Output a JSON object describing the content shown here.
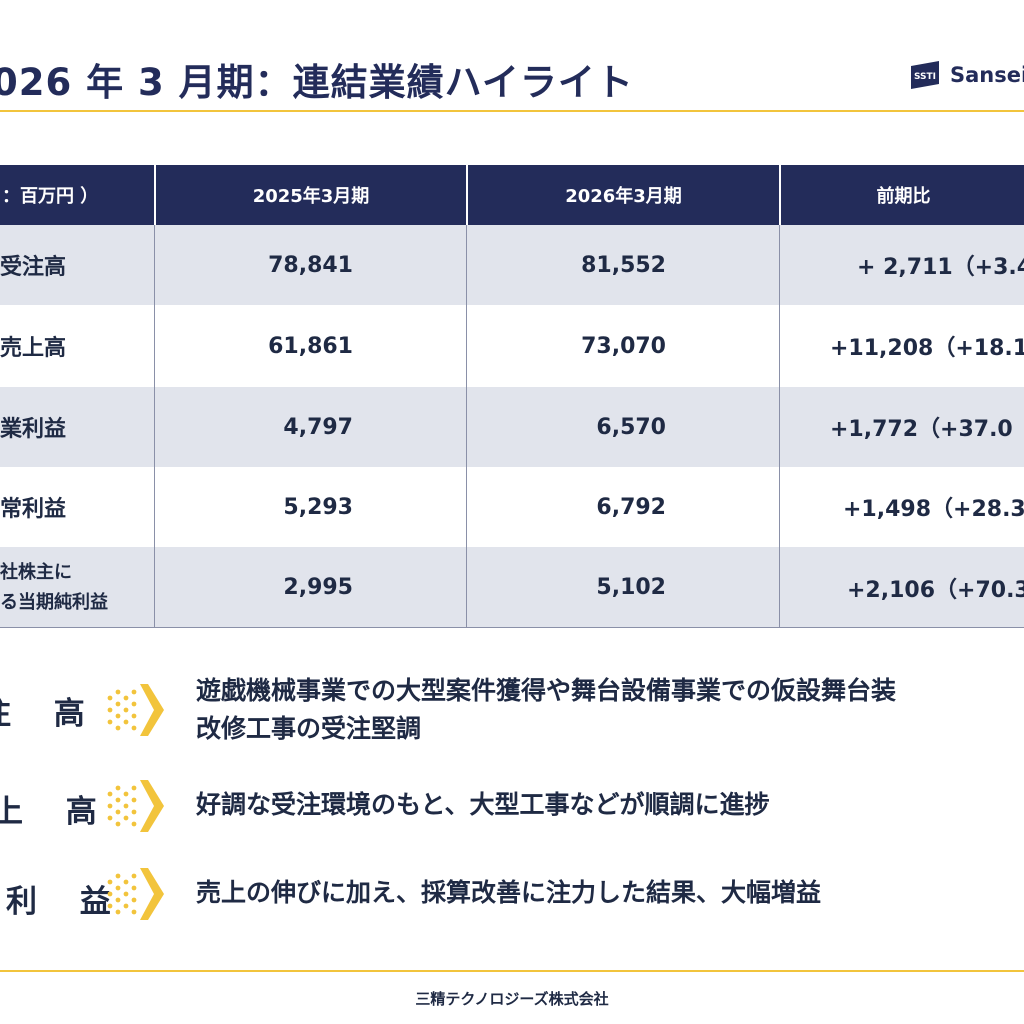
{
  "header": {
    "title": "026 年 3 月期：連結業績ハイライト",
    "logo_mark": "SSTI",
    "logo_text": "Sansei T"
  },
  "table": {
    "columns": [
      "：百万円 ）",
      "2025年3月期",
      "2026年3月期",
      "前期比"
    ],
    "rows": [
      {
        "label": "受注高",
        "label2": "",
        "fy2025": "78,841",
        "fy2026": "81,552",
        "change": "+ 2,711（+3.4"
      },
      {
        "label": "売上高",
        "label2": "",
        "fy2025": "61,861",
        "fy2026": "73,070",
        "change": "+11,208（+18.1"
      },
      {
        "label": "業利益",
        "label2": "",
        "fy2025": "4,797",
        "fy2026": "6,570",
        "change": "+1,772（+37.0"
      },
      {
        "label": "常利益",
        "label2": "",
        "fy2025": "5,293",
        "fy2026": "6,792",
        "change": "+1,498（+28.3"
      },
      {
        "label": "社株主に",
        "label2": "る当期純利益",
        "fy2025": "2,995",
        "fy2026": "5,102",
        "change": "+2,106（+70.3"
      }
    ]
  },
  "highlights": [
    {
      "label": "注 高",
      "text1": "遊戯機械事業での大型案件獲得や舞台設備事業での仮設舞台装",
      "text2": "改修工事の受注堅調"
    },
    {
      "label": "上 高",
      "text1": "好調な受注環境のもと、大型工事などが順調に進捗",
      "text2": ""
    },
    {
      "label": "利 益",
      "text1": "売上の伸びに加え、採算改善に注力した結果、大幅増益",
      "text2": ""
    }
  ],
  "footer": {
    "company": "三精テクノロジーズ株式会社"
  },
  "colors": {
    "navy": "#232c5a",
    "accent": "#f2c43c",
    "row_shade": "#e1e4ec",
    "text": "#1f2a44"
  },
  "icons": {
    "logo": "ssti-logo-icon",
    "arrow": "chevron-right-icon"
  }
}
